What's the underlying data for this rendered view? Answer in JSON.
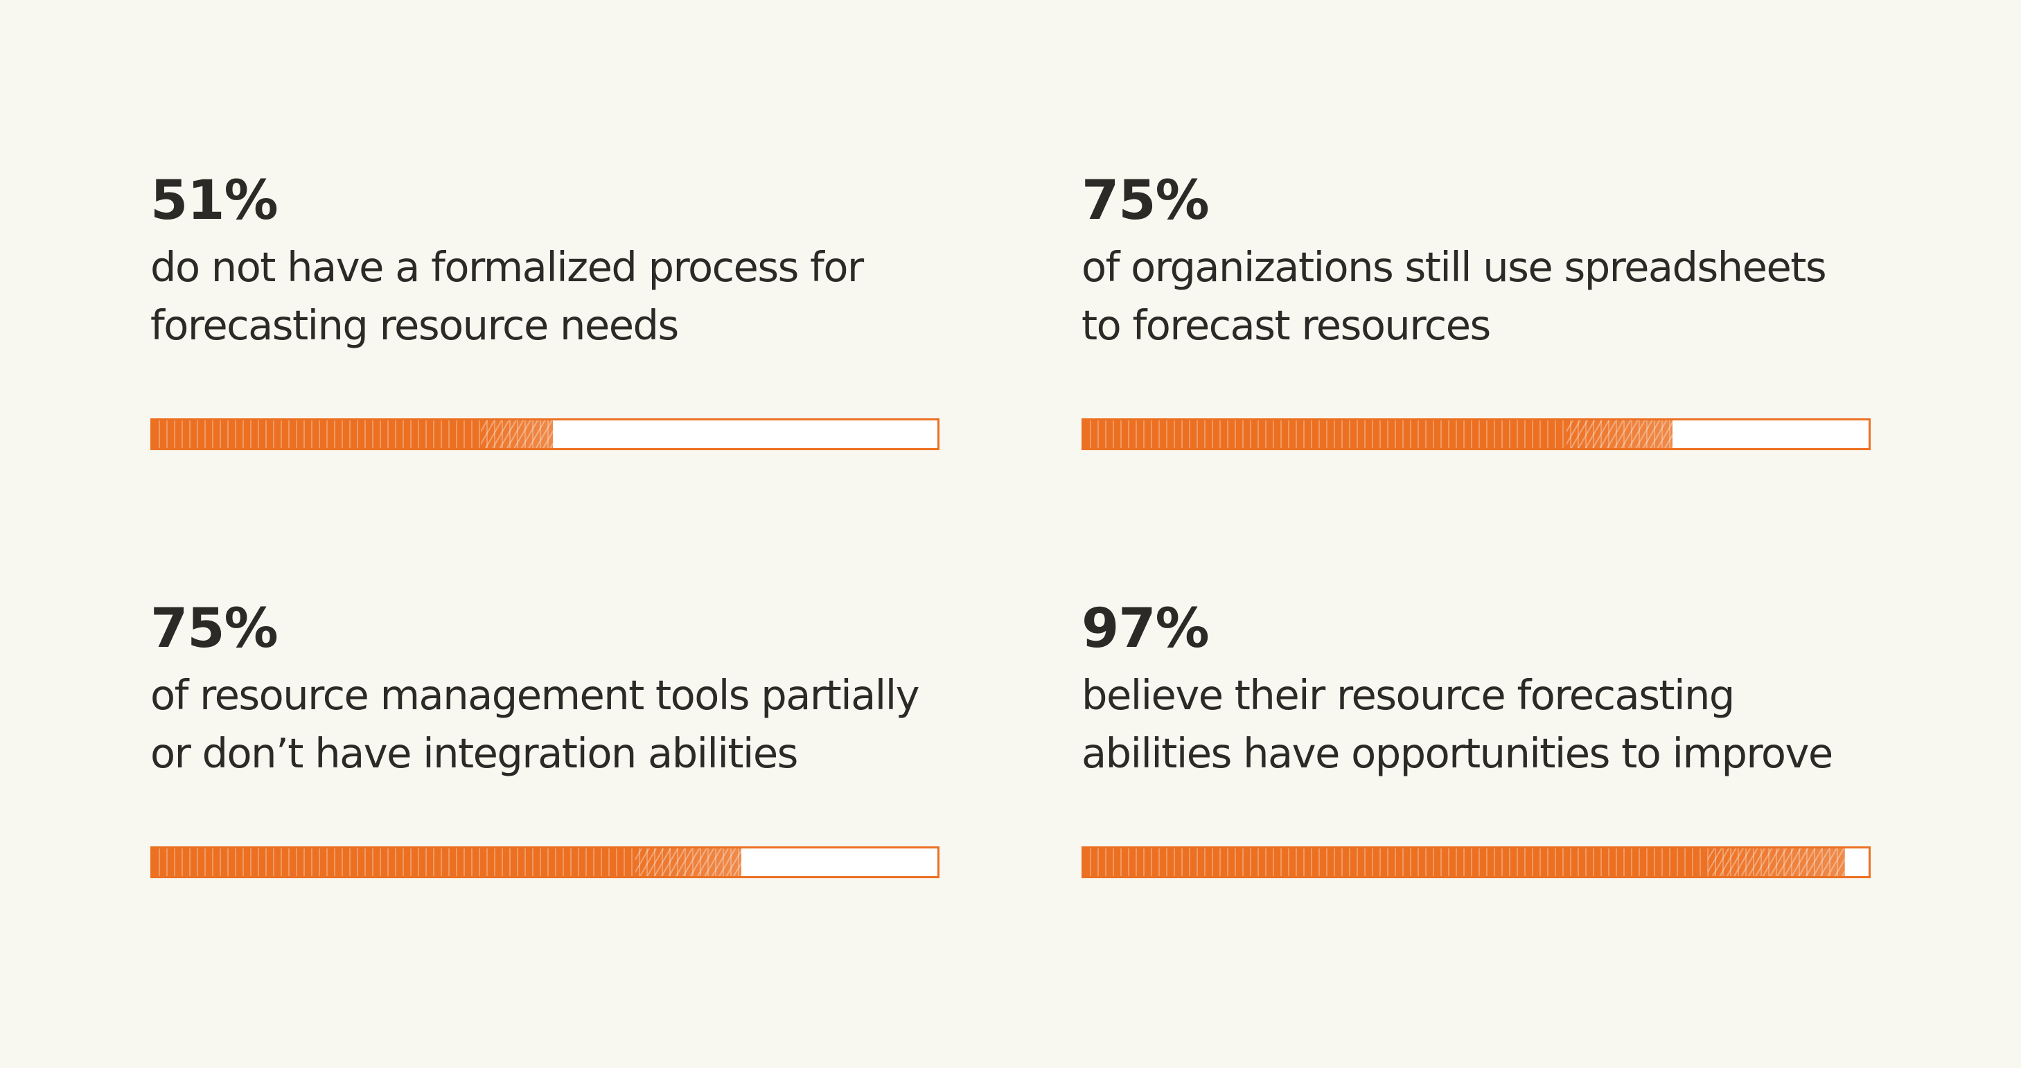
{
  "stats": [
    {
      "value": "51%",
      "line1": "do not have a formalized process for",
      "line2": "forecasting resource needs",
      "fill": 0.51
    },
    {
      "value": "75%",
      "line1": "of organizations still use spreadsheets",
      "line2": "to forecast resources",
      "fill": 0.75
    },
    {
      "value": "75%",
      "line1": "of resource management tools partially",
      "line2": "or don’t have integration abilities",
      "fill": 0.75
    },
    {
      "value": "97%",
      "line1": "believe their resource forecasting",
      "line2": "abilities have opportunities to improve",
      "fill": 0.97
    }
  ],
  "colors": {
    "accent": "#ec7022",
    "background": "#f9f8f0",
    "text": "#2b2a27",
    "bar_empty": "#ffffff"
  }
}
